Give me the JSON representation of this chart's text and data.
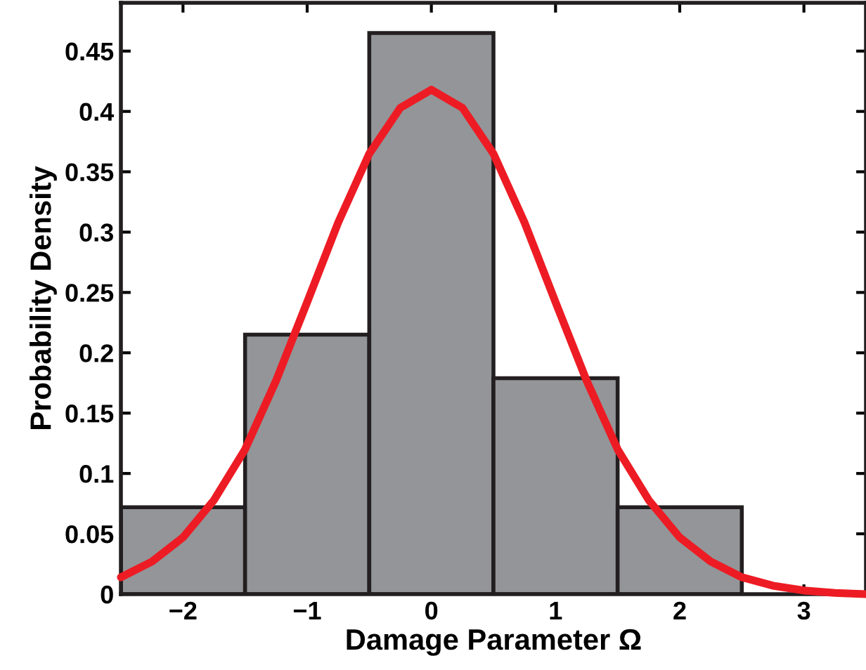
{
  "chart_data": {
    "type": "histogram",
    "xlabel": "Damage Parameter Ω",
    "ylabel": "Probability Density",
    "bins": [
      -2.5,
      -1.5,
      -0.5,
      0.5,
      1.5,
      2.5
    ],
    "values": [
      0.072,
      0.215,
      0.465,
      0.179,
      0.072
    ],
    "color": "#939598",
    "series": [
      {
        "type": "line",
        "color": "#ed1c24",
        "x": [
          -2.5,
          -2.25,
          -2,
          -1.75,
          -1.5,
          -1.25,
          -1,
          -0.75,
          -0.5,
          -0.25,
          0,
          0.25,
          0.5,
          0.75,
          1,
          1.25,
          1.5,
          1.75,
          2,
          2.25,
          2.5,
          2.75,
          3,
          3.25,
          3.5
        ],
        "values": [
          0.014,
          0.027,
          0.047,
          0.078,
          0.12,
          0.177,
          0.242,
          0.308,
          0.365,
          0.403,
          0.418,
          0.403,
          0.365,
          0.308,
          0.242,
          0.177,
          0.12,
          0.078,
          0.047,
          0.027,
          0.014,
          0.007,
          0.003,
          0.001,
          0.0
        ]
      }
    ],
    "xlim": [
      -2.5,
      3.5
    ],
    "xticks": [
      {
        "value": -2,
        "label": "−2"
      },
      {
        "value": -1,
        "label": "−1"
      },
      0,
      1,
      2,
      3
    ],
    "ylim": [
      0,
      0.49
    ],
    "yticks": [
      0,
      0.05,
      0.1,
      0.15,
      0.2,
      0.25,
      0.3,
      0.35,
      0.4,
      0.45
    ],
    "grid": false,
    "legend": false
  }
}
